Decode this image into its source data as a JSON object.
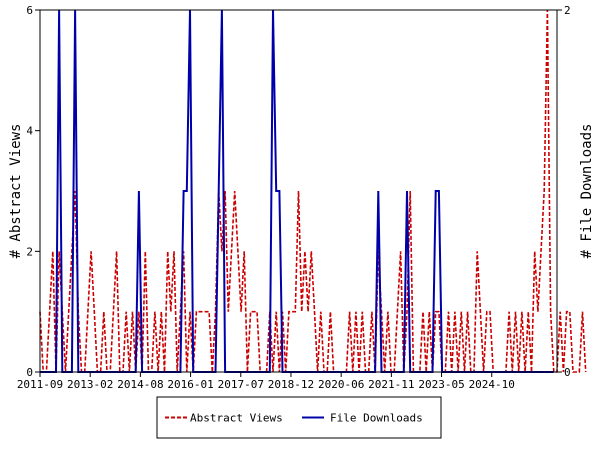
{
  "chart_data": {
    "type": "line",
    "x_tick_labels": [
      "2011-09",
      "2013-02",
      "2014-08",
      "2016-01",
      "2017-07",
      "2018-12",
      "2020-06",
      "2021-11",
      "2023-05",
      "2024-10"
    ],
    "x_range": [
      0,
      162
    ],
    "ylabel_left": "# Abstract Views",
    "ylabel_right": "# File Downloads",
    "yticks_left": [
      "0",
      "2",
      "4",
      "6"
    ],
    "yticks_right": [
      "0",
      "2"
    ],
    "ylim_left": [
      0,
      6
    ],
    "ylim_right": [
      0,
      2
    ],
    "grid": false,
    "legend_position": "bottom-center",
    "series": [
      {
        "name": "Abstract Views",
        "axis": "left",
        "color": "#cc0000",
        "style": "dashed",
        "values": [
          1,
          0,
          0,
          1,
          2,
          0,
          2,
          1,
          0,
          1,
          2,
          3,
          1,
          0,
          0,
          1,
          2,
          1,
          0,
          0,
          1,
          0,
          0,
          1,
          2,
          0,
          0,
          1,
          0,
          1,
          0,
          1,
          0,
          2,
          0,
          0,
          1,
          0,
          1,
          0,
          2,
          1,
          2,
          0,
          1,
          2,
          0,
          1,
          0,
          1,
          1,
          1,
          1,
          1,
          0,
          1,
          3,
          2,
          3,
          1,
          2,
          3,
          2,
          1,
          2,
          0,
          1,
          1,
          1,
          0,
          0,
          0,
          1,
          0,
          1,
          0,
          1,
          0,
          1,
          1,
          1,
          3,
          1,
          2,
          1,
          2,
          1,
          0,
          1,
          0,
          0,
          1,
          0,
          0,
          0,
          0,
          0,
          1,
          0,
          1,
          0,
          1,
          0,
          0,
          1,
          0,
          2,
          1,
          0,
          1,
          0,
          0,
          1,
          2,
          0,
          1,
          3,
          0,
          0,
          0,
          1,
          0,
          1,
          0,
          1,
          1,
          0,
          0,
          1,
          0,
          1,
          0,
          1,
          0,
          1,
          0,
          0,
          2,
          1,
          0,
          1,
          1,
          0,
          0,
          0,
          0,
          0,
          1,
          0,
          1,
          0,
          1,
          0,
          1,
          0,
          2,
          1,
          2,
          3,
          6,
          1,
          0,
          0,
          1,
          0,
          1,
          1,
          0,
          0,
          0,
          1,
          0
        ]
      },
      {
        "name": "File Downloads",
        "axis": "right",
        "color": "#0000aa",
        "style": "solid",
        "values": [
          0,
          0,
          0,
          0,
          0,
          0,
          2,
          0,
          0,
          0,
          0,
          2,
          0,
          0,
          0,
          0,
          0,
          0,
          0,
          0,
          0,
          0,
          0,
          0,
          0,
          0,
          0,
          0,
          0,
          0,
          0,
          1,
          0,
          0,
          0,
          0,
          0,
          0,
          0,
          0,
          0,
          0,
          0,
          0,
          0,
          1,
          1,
          2,
          0,
          0,
          0,
          0,
          0,
          0,
          0,
          0,
          1,
          2,
          0,
          0,
          0,
          0,
          0,
          0,
          0,
          0,
          0,
          0,
          0,
          0,
          0,
          0,
          0,
          2,
          1,
          1,
          0,
          0,
          0,
          0,
          0,
          0,
          0,
          0,
          0,
          0,
          0,
          0,
          0,
          0,
          0,
          0,
          0,
          0,
          0,
          0,
          0,
          0,
          0,
          0,
          0,
          0,
          0,
          0,
          0,
          0,
          1,
          0,
          0,
          0,
          0,
          0,
          0,
          0,
          0,
          1,
          0,
          0,
          0,
          0,
          0,
          0,
          0,
          0,
          1,
          1,
          0,
          0,
          0,
          0,
          0,
          0,
          0,
          0,
          0,
          0,
          0,
          0,
          0,
          0,
          0,
          0,
          0,
          0,
          0,
          0,
          0,
          0,
          0,
          0,
          0,
          0,
          0,
          0,
          0,
          0,
          0,
          0,
          0,
          0,
          0,
          0
        ]
      }
    ]
  }
}
